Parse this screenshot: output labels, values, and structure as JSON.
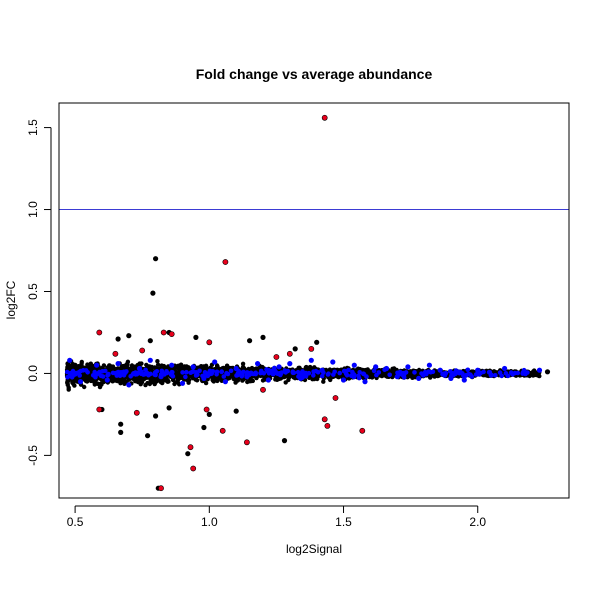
{
  "chart_data": {
    "type": "scatter",
    "title": "Fold change vs average abundance",
    "xlabel": "log2Signal",
    "ylabel": "log2FC",
    "xlim": [
      0.44,
      2.34
    ],
    "ylim": [
      -0.76,
      1.65
    ],
    "x_ticks": [
      "0.5",
      "1.0",
      "1.5",
      "2.0"
    ],
    "y_ticks": [
      "-0.5",
      "0.0",
      "0.5",
      "1.0",
      "1.5"
    ],
    "hline": {
      "y": 1.0,
      "color": "#3b3bd4"
    },
    "grid": false,
    "colors": {
      "black": "#000000",
      "blue": "#0000ff",
      "red": "#e8001c"
    },
    "series": [
      {
        "color": "black",
        "points": [
          [
            0.8,
            0.7
          ],
          [
            0.79,
            0.49
          ],
          [
            0.81,
            -0.7
          ],
          [
            1.06,
            0.68
          ],
          [
            0.66,
            0.21
          ],
          [
            0.7,
            0.23
          ],
          [
            0.78,
            0.2
          ],
          [
            0.85,
            0.25
          ],
          [
            0.95,
            0.22
          ],
          [
            1.15,
            0.2
          ],
          [
            1.2,
            0.22
          ],
          [
            1.4,
            0.19
          ],
          [
            1.32,
            0.15
          ],
          [
            0.67,
            -0.31
          ],
          [
            0.67,
            -0.36
          ],
          [
            0.77,
            -0.38
          ],
          [
            0.92,
            -0.49
          ],
          [
            0.98,
            -0.33
          ],
          [
            1.28,
            -0.41
          ],
          [
            1.0,
            -0.25
          ],
          [
            0.8,
            -0.26
          ],
          [
            0.6,
            -0.22
          ],
          [
            1.1,
            -0.23
          ],
          [
            0.85,
            -0.21
          ],
          [
            2.26,
            0.01
          ]
        ]
      },
      {
        "color": "blue",
        "points": [
          [
            0.48,
            0.08
          ],
          [
            0.52,
            -0.05
          ],
          [
            0.58,
            0.05
          ],
          [
            0.62,
            -0.04
          ],
          [
            0.66,
            0.06
          ],
          [
            0.7,
            -0.07
          ],
          [
            0.74,
            0.03
          ],
          [
            0.78,
            0.08
          ],
          [
            0.82,
            -0.02
          ],
          [
            0.86,
            0.05
          ],
          [
            0.9,
            -0.06
          ],
          [
            0.94,
            0.04
          ],
          [
            0.98,
            -0.03
          ],
          [
            1.02,
            0.07
          ],
          [
            1.06,
            -0.05
          ],
          [
            1.1,
            0.03
          ],
          [
            1.14,
            -0.02
          ],
          [
            1.18,
            0.06
          ],
          [
            1.22,
            -0.04
          ],
          [
            1.26,
            0.04
          ],
          [
            1.3,
            0.06
          ],
          [
            1.34,
            -0.03
          ],
          [
            1.38,
            0.08
          ],
          [
            1.42,
            0.02
          ],
          [
            1.46,
            0.07
          ],
          [
            1.5,
            -0.04
          ],
          [
            1.54,
            0.05
          ],
          [
            1.58,
            -0.05
          ],
          [
            1.62,
            0.04
          ],
          [
            1.66,
            0.03
          ],
          [
            1.7,
            -0.02
          ],
          [
            1.74,
            0.04
          ],
          [
            1.78,
            -0.03
          ],
          [
            1.82,
            0.05
          ],
          [
            1.86,
            0.02
          ],
          [
            1.9,
            -0.03
          ],
          [
            1.95,
            -0.04
          ],
          [
            2.0,
            0.02
          ],
          [
            2.05,
            -0.01
          ],
          [
            2.1,
            0.03
          ],
          [
            2.23,
            0.02
          ]
        ]
      },
      {
        "color": "red",
        "points": [
          [
            1.43,
            1.56
          ],
          [
            1.06,
            0.68
          ],
          [
            0.59,
            0.25
          ],
          [
            0.83,
            0.25
          ],
          [
            0.86,
            0.24
          ],
          [
            1.0,
            0.19
          ],
          [
            1.3,
            0.12
          ],
          [
            1.38,
            0.15
          ],
          [
            1.43,
            -0.28
          ],
          [
            1.44,
            -0.32
          ],
          [
            1.57,
            -0.35
          ],
          [
            1.14,
            -0.42
          ],
          [
            1.05,
            -0.35
          ],
          [
            0.93,
            -0.45
          ],
          [
            0.94,
            -0.58
          ],
          [
            0.82,
            -0.7
          ],
          [
            0.59,
            -0.22
          ],
          [
            0.73,
            -0.24
          ],
          [
            0.99,
            -0.22
          ],
          [
            0.65,
            0.12
          ],
          [
            0.75,
            0.14
          ],
          [
            1.25,
            0.1
          ],
          [
            1.47,
            -0.15
          ],
          [
            1.2,
            -0.1
          ]
        ]
      }
    ]
  }
}
